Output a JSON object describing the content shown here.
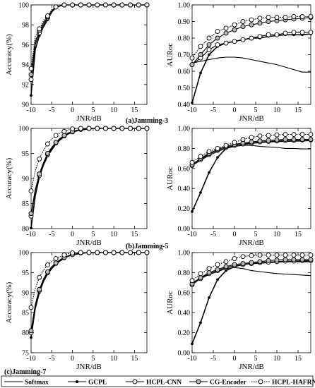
{
  "figure": {
    "panel_captions": [
      "(a)Jamming-3",
      "(b)Jamming-5",
      "(c)Jamming-7"
    ]
  },
  "legend": {
    "entries": [
      {
        "name": "Softmax",
        "marker": "none",
        "dash": "solid"
      },
      {
        "name": "GCPL",
        "marker": "dot",
        "dash": "solid"
      },
      {
        "name": "HCPL-CNN",
        "marker": "ring",
        "dash": "solid"
      },
      {
        "name": "CG-Encoder",
        "marker": "ring-fill",
        "dash": "solid"
      },
      {
        "name": "HCPL-HAFRNet",
        "marker": "ring",
        "dash": "dotted"
      }
    ]
  },
  "chart_data": [
    {
      "type": "line",
      "panel": "a-accuracy",
      "xlabel": "JNR/dB",
      "ylabel": "Accuracy(%)",
      "xlim": [
        -10,
        18
      ],
      "ylim": [
        90,
        100
      ],
      "xticks": [
        -10,
        -5,
        0,
        5,
        10,
        15
      ],
      "yticks": [
        90,
        92,
        94,
        96,
        98,
        100
      ],
      "x": [
        -10,
        -9,
        -8,
        -7,
        -6,
        -5,
        -4,
        -3,
        -2,
        -1,
        0,
        1,
        2,
        3,
        4,
        5,
        6,
        7,
        8,
        9,
        10,
        11,
        12,
        13,
        14,
        15,
        16,
        17,
        18
      ],
      "series": [
        {
          "name": "GCPL",
          "values": [
            90.9,
            95.5,
            96.9,
            97.8,
            98.5,
            99.3,
            99.7,
            99.9,
            100,
            100,
            100,
            100,
            100,
            100,
            100,
            100,
            100,
            100,
            100,
            100,
            100,
            100,
            100,
            100,
            100,
            100,
            100,
            100,
            100
          ]
        },
        {
          "name": "HCPL-CNN",
          "values": [
            92.5,
            96.0,
            97.2,
            98.0,
            98.7,
            99.4,
            99.8,
            99.9,
            100,
            100,
            100,
            100,
            100,
            100,
            100,
            100,
            100,
            100,
            100,
            100,
            100,
            100,
            100,
            100,
            100,
            100,
            100,
            100,
            100
          ]
        },
        {
          "name": "CG-Encoder",
          "values": [
            93.0,
            96.3,
            97.4,
            98.2,
            98.8,
            99.4,
            99.8,
            99.9,
            100,
            100,
            100,
            100,
            100,
            100,
            100,
            100,
            100,
            100,
            100,
            100,
            100,
            100,
            100,
            100,
            100,
            100,
            100,
            100,
            100
          ]
        },
        {
          "name": "HCPL-HAFRNet",
          "values": [
            93.6,
            96.8,
            97.6,
            98.4,
            98.9,
            99.5,
            99.8,
            99.9,
            100,
            100,
            100,
            100,
            100,
            100,
            100,
            100,
            100,
            100,
            100,
            100,
            100,
            100,
            100,
            100,
            100,
            100,
            100,
            100,
            100
          ]
        }
      ]
    },
    {
      "type": "line",
      "panel": "a-auroc",
      "xlabel": "JNR/dB",
      "ylabel": "AURoc",
      "xlim": [
        -10,
        18
      ],
      "ylim": [
        0.4,
        1.0
      ],
      "xticks": [
        -10,
        -5,
        0,
        5,
        10,
        15
      ],
      "yticks": [
        0.4,
        0.5,
        0.6,
        0.7,
        0.8,
        0.9,
        1.0
      ],
      "x": [
        -10,
        -8,
        -6,
        -4,
        -2,
        0,
        2,
        4,
        6,
        8,
        10,
        12,
        14,
        16,
        18
      ],
      "series": [
        {
          "name": "Softmax",
          "values": [
            0.65,
            0.66,
            0.67,
            0.68,
            0.685,
            0.685,
            0.68,
            0.67,
            0.66,
            0.65,
            0.64,
            0.625,
            0.61,
            0.595,
            0.595
          ]
        },
        {
          "name": "GCPL",
          "values": [
            0.41,
            0.59,
            0.7,
            0.75,
            0.77,
            0.78,
            0.79,
            0.8,
            0.8,
            0.81,
            0.815,
            0.82,
            0.82,
            0.82,
            0.825
          ]
        },
        {
          "name": "HCPL-CNN",
          "values": [
            0.64,
            0.68,
            0.73,
            0.76,
            0.77,
            0.78,
            0.79,
            0.8,
            0.81,
            0.82,
            0.82,
            0.83,
            0.835,
            0.835,
            0.835
          ]
        },
        {
          "name": "CG-Encoder",
          "values": [
            0.64,
            0.7,
            0.76,
            0.8,
            0.83,
            0.85,
            0.87,
            0.88,
            0.89,
            0.9,
            0.905,
            0.91,
            0.915,
            0.92,
            0.925
          ]
        },
        {
          "name": "HCPL-HAFRNet",
          "values": [
            0.68,
            0.75,
            0.8,
            0.84,
            0.86,
            0.88,
            0.9,
            0.91,
            0.92,
            0.925,
            0.925,
            0.925,
            0.93,
            0.93,
            0.93
          ]
        }
      ]
    },
    {
      "type": "line",
      "panel": "b-accuracy",
      "xlabel": "JNR/dB",
      "ylabel": "Accuracy(%)",
      "xlim": [
        -10,
        18
      ],
      "ylim": [
        80,
        100
      ],
      "xticks": [
        -10,
        -5,
        0,
        5,
        10,
        15
      ],
      "yticks": [
        80,
        85,
        90,
        95,
        100
      ],
      "x": [
        -10,
        -9,
        -8,
        -7,
        -6,
        -5,
        -4,
        -3,
        -2,
        -1,
        0,
        1,
        2,
        3,
        4,
        5,
        6,
        7,
        8,
        9,
        10,
        11,
        12,
        13,
        14,
        15,
        16,
        17,
        18
      ],
      "series": [
        {
          "name": "GCPL",
          "values": [
            80.1,
            86.5,
            90.3,
            92.7,
            94.5,
            95.7,
            96.9,
            97.7,
            98.4,
            98.9,
            99.2,
            99.5,
            99.7,
            99.8,
            99.9,
            100,
            100,
            100,
            100,
            100,
            100,
            100,
            100,
            100,
            100,
            100,
            100,
            100,
            100
          ]
        },
        {
          "name": "HCPL-CNN",
          "values": [
            82.5,
            87.5,
            90.6,
            93.0,
            94.8,
            96.0,
            97.1,
            97.9,
            98.5,
            99.0,
            99.3,
            99.6,
            99.8,
            99.9,
            100,
            100,
            100,
            100,
            100,
            100,
            100,
            100,
            100,
            100,
            100,
            100,
            100,
            100,
            100
          ]
        },
        {
          "name": "CG-Encoder",
          "values": [
            83.0,
            87.8,
            90.9,
            93.2,
            95.0,
            96.2,
            97.2,
            98.0,
            98.6,
            99.1,
            99.4,
            99.6,
            99.8,
            99.9,
            100,
            100,
            100,
            100,
            100,
            100,
            100,
            100,
            100,
            100,
            100,
            100,
            100,
            100,
            100
          ]
        },
        {
          "name": "HCPL-HAFRNet",
          "values": [
            87.5,
            91.5,
            93.9,
            95.6,
            96.9,
            97.9,
            98.6,
            99.1,
            99.4,
            99.7,
            99.9,
            100,
            100,
            100,
            100,
            100,
            100,
            100,
            100,
            100,
            100,
            100,
            100,
            100,
            100,
            100,
            100,
            100,
            100
          ]
        }
      ]
    },
    {
      "type": "line",
      "panel": "b-auroc",
      "xlabel": "JNR/dB",
      "ylabel": "AURoc",
      "xlim": [
        -10,
        18
      ],
      "ylim": [
        0.0,
        1.0
      ],
      "xticks": [
        -10,
        -5,
        0,
        5,
        10,
        15
      ],
      "yticks": [
        0.0,
        0.2,
        0.4,
        0.6,
        0.8,
        1.0
      ],
      "x": [
        -10,
        -8,
        -6,
        -4,
        -2,
        0,
        2,
        4,
        6,
        8,
        10,
        12,
        14,
        16,
        18
      ],
      "series": [
        {
          "name": "Softmax",
          "values": [
            0.63,
            0.68,
            0.73,
            0.77,
            0.8,
            0.82,
            0.83,
            0.83,
            0.82,
            0.815,
            0.81,
            0.8,
            0.8,
            0.795,
            0.795
          ]
        },
        {
          "name": "GCPL",
          "values": [
            0.17,
            0.36,
            0.56,
            0.71,
            0.8,
            0.83,
            0.84,
            0.85,
            0.86,
            0.865,
            0.87,
            0.87,
            0.875,
            0.875,
            0.88
          ]
        },
        {
          "name": "HCPL-CNN",
          "values": [
            0.63,
            0.69,
            0.74,
            0.78,
            0.81,
            0.83,
            0.845,
            0.855,
            0.865,
            0.87,
            0.875,
            0.88,
            0.88,
            0.885,
            0.885
          ]
        },
        {
          "name": "CG-Encoder",
          "values": [
            0.64,
            0.7,
            0.75,
            0.79,
            0.82,
            0.84,
            0.855,
            0.865,
            0.875,
            0.88,
            0.885,
            0.89,
            0.89,
            0.89,
            0.89
          ]
        },
        {
          "name": "HCPL-HAFRNet",
          "values": [
            0.66,
            0.72,
            0.77,
            0.8,
            0.83,
            0.86,
            0.89,
            0.91,
            0.925,
            0.93,
            0.935,
            0.94,
            0.94,
            0.94,
            0.94
          ]
        }
      ]
    },
    {
      "type": "line",
      "panel": "c-accuracy",
      "xlabel": "JNR/dB",
      "ylabel": "Accuracy(%)",
      "xlim": [
        -10,
        18
      ],
      "ylim": [
        75,
        100
      ],
      "xticks": [
        -10,
        -5,
        0,
        5,
        10,
        15
      ],
      "yticks": [
        75,
        80,
        85,
        90,
        95,
        100
      ],
      "x": [
        -10,
        -9,
        -8,
        -7,
        -6,
        -5,
        -4,
        -3,
        -2,
        -1,
        0,
        1,
        2,
        3,
        4,
        5,
        6,
        7,
        8,
        9,
        10,
        11,
        12,
        13,
        14,
        15,
        16,
        17,
        18
      ],
      "series": [
        {
          "name": "GCPL",
          "values": [
            78.8,
            86.0,
            90.0,
            92.8,
            94.7,
            96.0,
            97.1,
            97.9,
            98.6,
            99.1,
            99.4,
            99.6,
            99.8,
            99.9,
            100,
            100,
            100,
            100,
            100,
            100,
            100,
            100,
            100,
            100,
            100,
            100,
            100,
            100,
            100
          ]
        },
        {
          "name": "HCPL-CNN",
          "values": [
            80.0,
            86.8,
            90.5,
            93.2,
            95.0,
            96.3,
            97.3,
            98.1,
            98.7,
            99.2,
            99.5,
            99.7,
            99.9,
            100,
            100,
            100,
            100,
            100,
            100,
            100,
            100,
            100,
            100,
            100,
            100,
            100,
            100,
            100,
            100
          ]
        },
        {
          "name": "CG-Encoder",
          "values": [
            80.5,
            87.0,
            90.8,
            93.4,
            95.2,
            96.5,
            97.4,
            98.2,
            98.8,
            99.2,
            99.5,
            99.7,
            99.9,
            100,
            100,
            100,
            100,
            100,
            100,
            100,
            100,
            100,
            100,
            100,
            100,
            100,
            100,
            100,
            100
          ]
        },
        {
          "name": "HCPL-HAFRNet",
          "values": [
            86.3,
            91.0,
            93.8,
            95.6,
            96.9,
            97.8,
            98.5,
            99.0,
            99.4,
            99.7,
            99.9,
            100,
            100,
            100,
            100,
            100,
            100,
            100,
            100,
            100,
            100,
            100,
            100,
            100,
            100,
            100,
            100,
            100,
            100
          ]
        }
      ]
    },
    {
      "type": "line",
      "panel": "c-auroc",
      "xlabel": "JNR/dB",
      "ylabel": "AURoc",
      "xlim": [
        -10,
        18
      ],
      "ylim": [
        0.0,
        1.0
      ],
      "xticks": [
        -10,
        -5,
        0,
        5,
        10,
        15
      ],
      "yticks": [
        0.0,
        0.2,
        0.4,
        0.6,
        0.8,
        1.0
      ],
      "x": [
        -10,
        -8,
        -6,
        -4,
        -2,
        0,
        2,
        4,
        6,
        8,
        10,
        12,
        14,
        16,
        18
      ],
      "series": [
        {
          "name": "Softmax",
          "values": [
            0.7,
            0.74,
            0.78,
            0.81,
            0.84,
            0.85,
            0.84,
            0.82,
            0.81,
            0.8,
            0.79,
            0.785,
            0.78,
            0.775,
            0.77
          ]
        },
        {
          "name": "GCPL",
          "values": [
            0.09,
            0.3,
            0.55,
            0.73,
            0.82,
            0.86,
            0.88,
            0.89,
            0.895,
            0.9,
            0.905,
            0.91,
            0.91,
            0.91,
            0.91
          ]
        },
        {
          "name": "HCPL-CNN",
          "values": [
            0.68,
            0.74,
            0.79,
            0.82,
            0.85,
            0.87,
            0.88,
            0.89,
            0.9,
            0.905,
            0.91,
            0.915,
            0.915,
            0.92,
            0.92
          ]
        },
        {
          "name": "CG-Encoder",
          "values": [
            0.69,
            0.75,
            0.8,
            0.83,
            0.86,
            0.88,
            0.89,
            0.9,
            0.91,
            0.92,
            0.925,
            0.93,
            0.93,
            0.93,
            0.93
          ]
        },
        {
          "name": "HCPL-HAFRNet",
          "values": [
            0.72,
            0.79,
            0.84,
            0.88,
            0.91,
            0.94,
            0.96,
            0.97,
            0.975,
            0.975,
            0.975,
            0.975,
            0.975,
            0.975,
            0.975
          ]
        }
      ]
    }
  ]
}
